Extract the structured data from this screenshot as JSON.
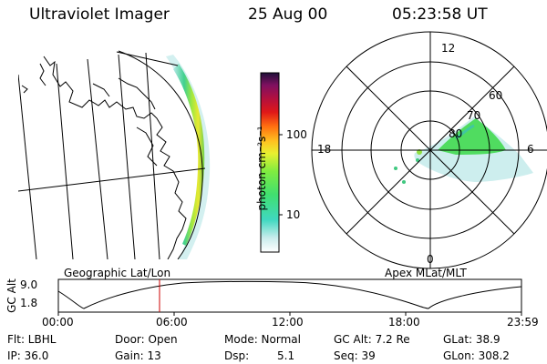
{
  "header": {
    "instrument": "Ultraviolet Imager",
    "date": "25 Aug 00",
    "time": "05:23:58 UT"
  },
  "colorbar": {
    "unit_label": "photon cm⁻²s⁻¹",
    "ticks": [
      "100",
      "10"
    ]
  },
  "polar": {
    "lat_labels": [
      "80",
      "70",
      "60"
    ],
    "mlt_labels": [
      "12",
      "18",
      "6",
      "0"
    ]
  },
  "panels": {
    "left_caption": "Geographic Lat/Lon",
    "right_caption": "Apex MLat/MLT"
  },
  "altitude": {
    "axis_label": "GC Alt",
    "y_ticks": [
      "9.0",
      "1.8"
    ],
    "x_ticks": [
      "00:00",
      "06:00",
      "12:00",
      "18:00",
      "23:59"
    ],
    "current_time_marker": "05:23:58",
    "color": "#cc0000"
  },
  "status": {
    "flt": "Flt: LBHL",
    "ip": "IP: 36.0",
    "door": "Door: Open",
    "gain": "Gain: 13",
    "mode": "Mode: Normal",
    "dsp_label": "Dsp:",
    "dsp_value": "5.1",
    "gc_alt": "GC Alt: 7.2 Re",
    "seq": "Seq: 39",
    "glat": "GLat:  38.9",
    "glon": "GLon: 308.2"
  }
}
